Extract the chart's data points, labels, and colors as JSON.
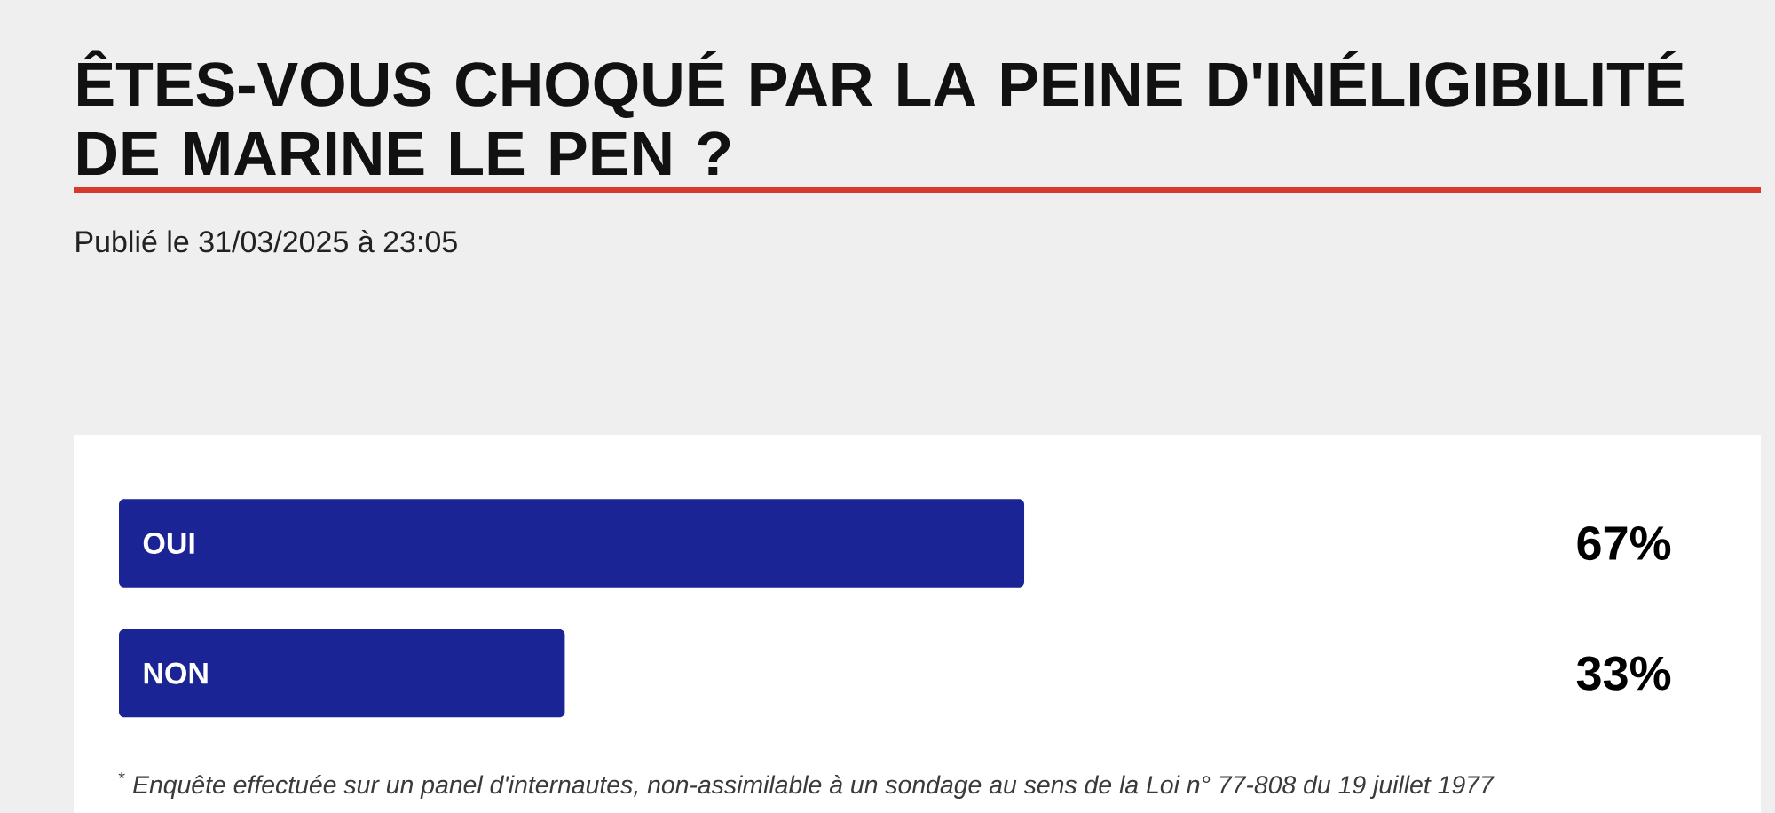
{
  "chart_data": {
    "type": "bar",
    "orientation": "horizontal",
    "title": "ÊTES-VOUS CHOQUÉ PAR LA PEINE D'INÉLIGIBILITÉ DE MARINE LE PEN ?",
    "subtitle": "Publié le 31/03/2025 à 23:05",
    "categories": [
      "OUI",
      "NON"
    ],
    "values": [
      67,
      33
    ],
    "value_labels": [
      "67%",
      "33%"
    ],
    "color": "#1a2494",
    "annotations": [
      "$^{*}$ Enquête effectuée sur un panel d'internautes, non-assimilable à un sondage au sens de la Loi n° 77-808 du 19 juillet 1977"
    ]
  }
}
